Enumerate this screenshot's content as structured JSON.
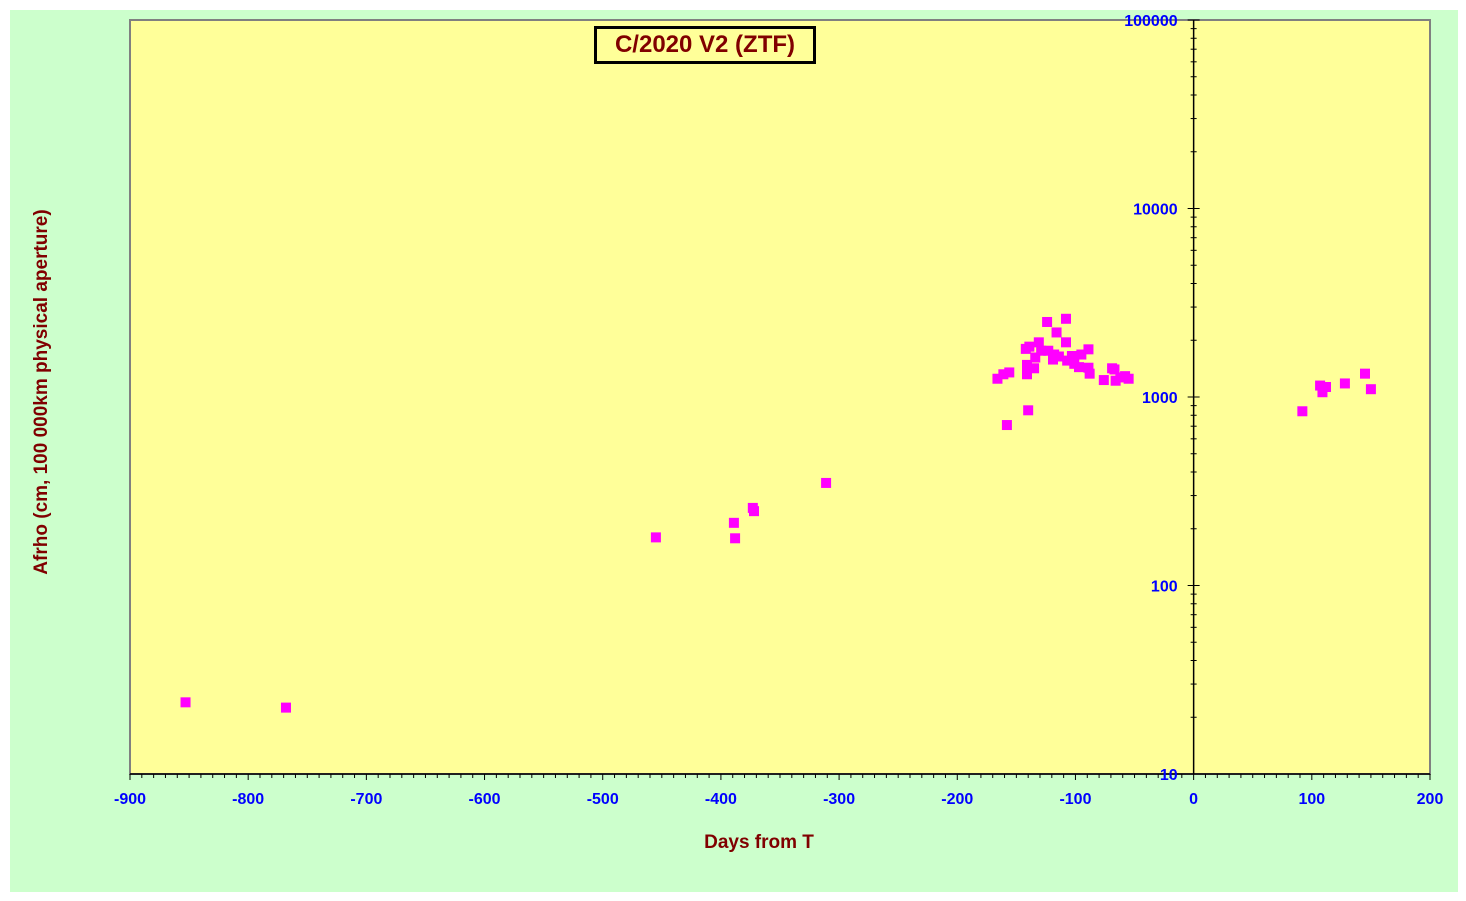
{
  "chart_data": {
    "type": "scatter",
    "title": "C/2020 V2 (ZTF)",
    "xlabel": "Days from  T",
    "ylabel": "Afrho  (cm, 100 000km  physical  aperture)",
    "xlim": [
      -900,
      200
    ],
    "ylim": [
      10,
      100000
    ],
    "yscale": "log",
    "x_ticks": [
      -900,
      -800,
      -700,
      -600,
      -500,
      -400,
      -300,
      -200,
      -100,
      0,
      100,
      200
    ],
    "x_tick_labels": [
      "-900",
      "-800",
      "-700",
      "-600",
      "-500",
      "-400",
      "-300",
      "-200",
      "-100",
      "0",
      "100",
      "200"
    ],
    "y_ticks": [
      10,
      100,
      1000,
      10000,
      100000
    ],
    "y_tick_labels": [
      "10",
      "100",
      "1000",
      "10000",
      "100000"
    ],
    "grid": false,
    "colors": {
      "plot_bg": "#ffff99",
      "outer_bg": "#ccffcc",
      "marker": "#ff00ff",
      "tick_labels": "#0000ff",
      "axis_titles": "#800000"
    },
    "series": [
      {
        "points": [
          [
            -853,
            24
          ],
          [
            -768,
            22.5
          ],
          [
            -455,
            180
          ],
          [
            -389,
            215
          ],
          [
            -388,
            178
          ],
          [
            -373,
            258
          ],
          [
            -372,
            248
          ],
          [
            -311,
            350
          ],
          [
            -166,
            1250
          ],
          [
            -161,
            1320
          ],
          [
            -158,
            710
          ],
          [
            -156,
            1350
          ],
          [
            -142,
            1800
          ],
          [
            -141,
            1320
          ],
          [
            -141,
            1480
          ],
          [
            -140,
            850
          ],
          [
            -139,
            1850
          ],
          [
            -135,
            1420
          ],
          [
            -134,
            1620
          ],
          [
            -131,
            1950
          ],
          [
            -129,
            1760
          ],
          [
            -124,
            2500
          ],
          [
            -123,
            1760
          ],
          [
            -119,
            1580
          ],
          [
            -118,
            1680
          ],
          [
            -116,
            2200
          ],
          [
            -114,
            1640
          ],
          [
            -108,
            2600
          ],
          [
            -108,
            1950
          ],
          [
            -107,
            1560
          ],
          [
            -103,
            1650
          ],
          [
            -101,
            1500
          ],
          [
            -97,
            1440
          ],
          [
            -95,
            1680
          ],
          [
            -89,
            1790
          ],
          [
            -89,
            1430
          ],
          [
            -88,
            1330
          ],
          [
            -76,
            1230
          ],
          [
            -69,
            1420
          ],
          [
            -67,
            1400
          ],
          [
            -66,
            1220
          ],
          [
            -62,
            1270
          ],
          [
            -58,
            1290
          ],
          [
            -55,
            1250
          ],
          [
            92,
            840
          ],
          [
            107,
            1150
          ],
          [
            109,
            1060
          ],
          [
            112,
            1130
          ],
          [
            128,
            1180
          ],
          [
            145,
            1330
          ],
          [
            150,
            1100
          ]
        ]
      }
    ]
  }
}
